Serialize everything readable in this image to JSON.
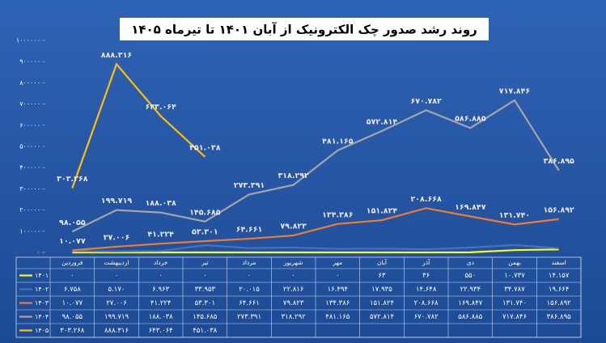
{
  "chart_data": {
    "type": "line",
    "title": "روند رشد صدور چک الکترونیک از آبان ۱۴۰۱ تا تیرماه ۱۴۰۵",
    "categories": [
      "فروردین",
      "اردیبهشت",
      "خرداد",
      "تیر",
      "مرداد",
      "شهریور",
      "مهر",
      "آبان",
      "آذر",
      "دی",
      "بهمن",
      "اسفند"
    ],
    "ylim": [
      0,
      1000000
    ],
    "yticks": [
      {
        "value": 0,
        "label": "۰"
      },
      {
        "value": 100000,
        "label": "۱۰۰۰۰۰"
      },
      {
        "value": 200000,
        "label": "۲۰۰۰۰۰"
      },
      {
        "value": 300000,
        "label": "۳۰۰۰۰۰"
      },
      {
        "value": 400000,
        "label": "۴۰۰۰۰۰"
      },
      {
        "value": 500000,
        "label": "۵۰۰۰۰۰"
      },
      {
        "value": 600000,
        "label": "۶۰۰۰۰۰"
      },
      {
        "value": 700000,
        "label": "۷۰۰۰۰۰"
      },
      {
        "value": 800000,
        "label": "۸۰۰۰۰۰"
      },
      {
        "value": 900000,
        "label": "۹۰۰۰۰۰"
      },
      {
        "value": 1000000,
        "label": "۱۰۰۰۰۰۰"
      }
    ],
    "grid": false,
    "series": [
      {
        "name": "۱۴۰۱",
        "color": "#ffff00",
        "data_labels": false,
        "values": [
          0,
          0,
          0,
          0,
          0,
          0,
          0,
          63,
          36,
          550,
          10737,
          14157
        ],
        "value_labels": [
          "۰",
          "۰",
          "۰",
          "۰",
          "۰",
          "۰",
          "۰",
          "۶۳",
          "۳۶",
          "۵۵۰",
          "۱۰.۷۳۷",
          "۱۴.۱۵۷"
        ]
      },
      {
        "name": "۱۴۰۲",
        "color": "#4472c4",
        "data_labels": false,
        "values": [
          6758,
          5170,
          6963,
          33953,
          20015,
          22816,
          16494,
          17935,
          14648,
          22934,
          34787,
          19664
        ],
        "value_labels": [
          "۶.۷۵۸",
          "۵.۱۷۰",
          "۶.۹۶۳",
          "۳۳.۹۵۳",
          "۲۰.۰۱۵",
          "۲۲.۸۱۶",
          "۱۶.۴۹۴",
          "۱۷.۹۳۵",
          "۱۴.۶۴۸",
          "۲۲.۹۳۴",
          "۳۴.۷۸۷",
          "۱۹.۶۶۴"
        ]
      },
      {
        "name": "۱۴۰۳",
        "color": "#ed7d31",
        "data_labels": true,
        "values": [
          10077,
          27006,
          41224,
          53301,
          64661,
          79823,
          134386,
          151824,
          208668,
          169847,
          131740,
          156892
        ],
        "value_labels": [
          "۱۰.۰۷۷",
          "۲۷.۰۰۶",
          "۴۱.۲۲۴",
          "۵۳.۳۰۱",
          "۶۴.۶۶۱",
          "۷۹.۸۲۳",
          "۱۳۴.۳۸۶",
          "۱۵۱.۸۲۴",
          "۲۰۸.۶۶۸",
          "۱۶۹.۸۴۷",
          "۱۳۱.۷۴۰",
          "۱۵۶.۸۹۲"
        ]
      },
      {
        "name": "۱۴۰۴",
        "color": "#a5a5a5",
        "data_labels": true,
        "values": [
          98055,
          199719,
          188038,
          145685,
          273391,
          318292,
          481165,
          572814,
          670782,
          586885,
          717846,
          386895
        ],
        "value_labels": [
          "۹۸.۰۵۵",
          "۱۹۹.۷۱۹",
          "۱۸۸.۰۳۸",
          "۱۴۵.۶۸۵",
          "۲۷۳.۳۹۱",
          "۳۱۸.۲۹۲",
          "۴۸۱.۱۶۵",
          "۵۷۲.۸۱۴",
          "۶۷۰.۷۸۲",
          "۵۸۶.۸۸۵",
          "۷۱۷.۸۴۶",
          "۳۸۶.۸۹۵"
        ]
      },
      {
        "name": "۱۴۰۵",
        "color": "#ffc000",
        "data_labels": true,
        "values": [
          303268,
          888316,
          643064,
          451038,
          null,
          null,
          null,
          null,
          null,
          null,
          null,
          null
        ],
        "value_labels": [
          "۳۰۳.۲۶۸",
          "۸۸۸.۳۱۶",
          "۶۴۳.۰۶۴",
          "۴۵۱.۰۳۸",
          null,
          null,
          null,
          null,
          null,
          null,
          null,
          null
        ]
      }
    ]
  }
}
